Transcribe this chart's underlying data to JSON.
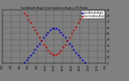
{
  "title": "Sun Altitude Angle & Sun Incidence Angle on PV Panels",
  "legend_labels": [
    "Sun Altitude Angle",
    "Sun Incidence Angle"
  ],
  "legend_colors": [
    "#0000cc",
    "#cc0000"
  ],
  "background_color": "#808080",
  "plot_bg": "#808080",
  "xlim": [
    0,
    24
  ],
  "ylim": [
    0,
    90
  ],
  "yticks": [
    0,
    10,
    20,
    30,
    40,
    50,
    60,
    70,
    80,
    90
  ],
  "xtick_labels": [
    "0:00",
    "2:00",
    "4:00",
    "6:00",
    "8:00",
    "10:00",
    "12:00",
    "14:00",
    "16:00",
    "18:00",
    "20:00",
    "22:00",
    "0:00"
  ],
  "sun_altitude_x": [
    5.0,
    5.5,
    6.0,
    6.5,
    7.0,
    7.5,
    8.0,
    8.5,
    9.0,
    9.5,
    10.0,
    10.5,
    11.0,
    11.5,
    12.0,
    12.5,
    13.0,
    13.5,
    14.0,
    14.5,
    15.0,
    15.5,
    16.0,
    16.5,
    17.0,
    17.5,
    18.0,
    18.5,
    19.0
  ],
  "sun_altitude_y": [
    2,
    5,
    9,
    13,
    18,
    23,
    28,
    33,
    38,
    43,
    48,
    52,
    56,
    58,
    59,
    58,
    56,
    52,
    48,
    43,
    38,
    33,
    28,
    23,
    18,
    13,
    9,
    5,
    2
  ],
  "incidence_x": [
    5.0,
    5.5,
    6.0,
    6.5,
    7.0,
    7.5,
    8.0,
    8.5,
    9.0,
    9.5,
    10.0,
    10.5,
    11.0,
    11.5,
    12.0,
    12.5,
    13.0,
    13.5,
    14.0,
    14.5,
    15.0,
    15.5,
    16.0,
    16.5,
    17.0,
    17.5,
    18.0,
    18.5,
    19.0
  ],
  "incidence_y": [
    85,
    80,
    74,
    68,
    62,
    56,
    50,
    44,
    38,
    32,
    27,
    22,
    18,
    15,
    14,
    15,
    18,
    22,
    27,
    32,
    38,
    44,
    50,
    56,
    62,
    68,
    74,
    80,
    85
  ]
}
